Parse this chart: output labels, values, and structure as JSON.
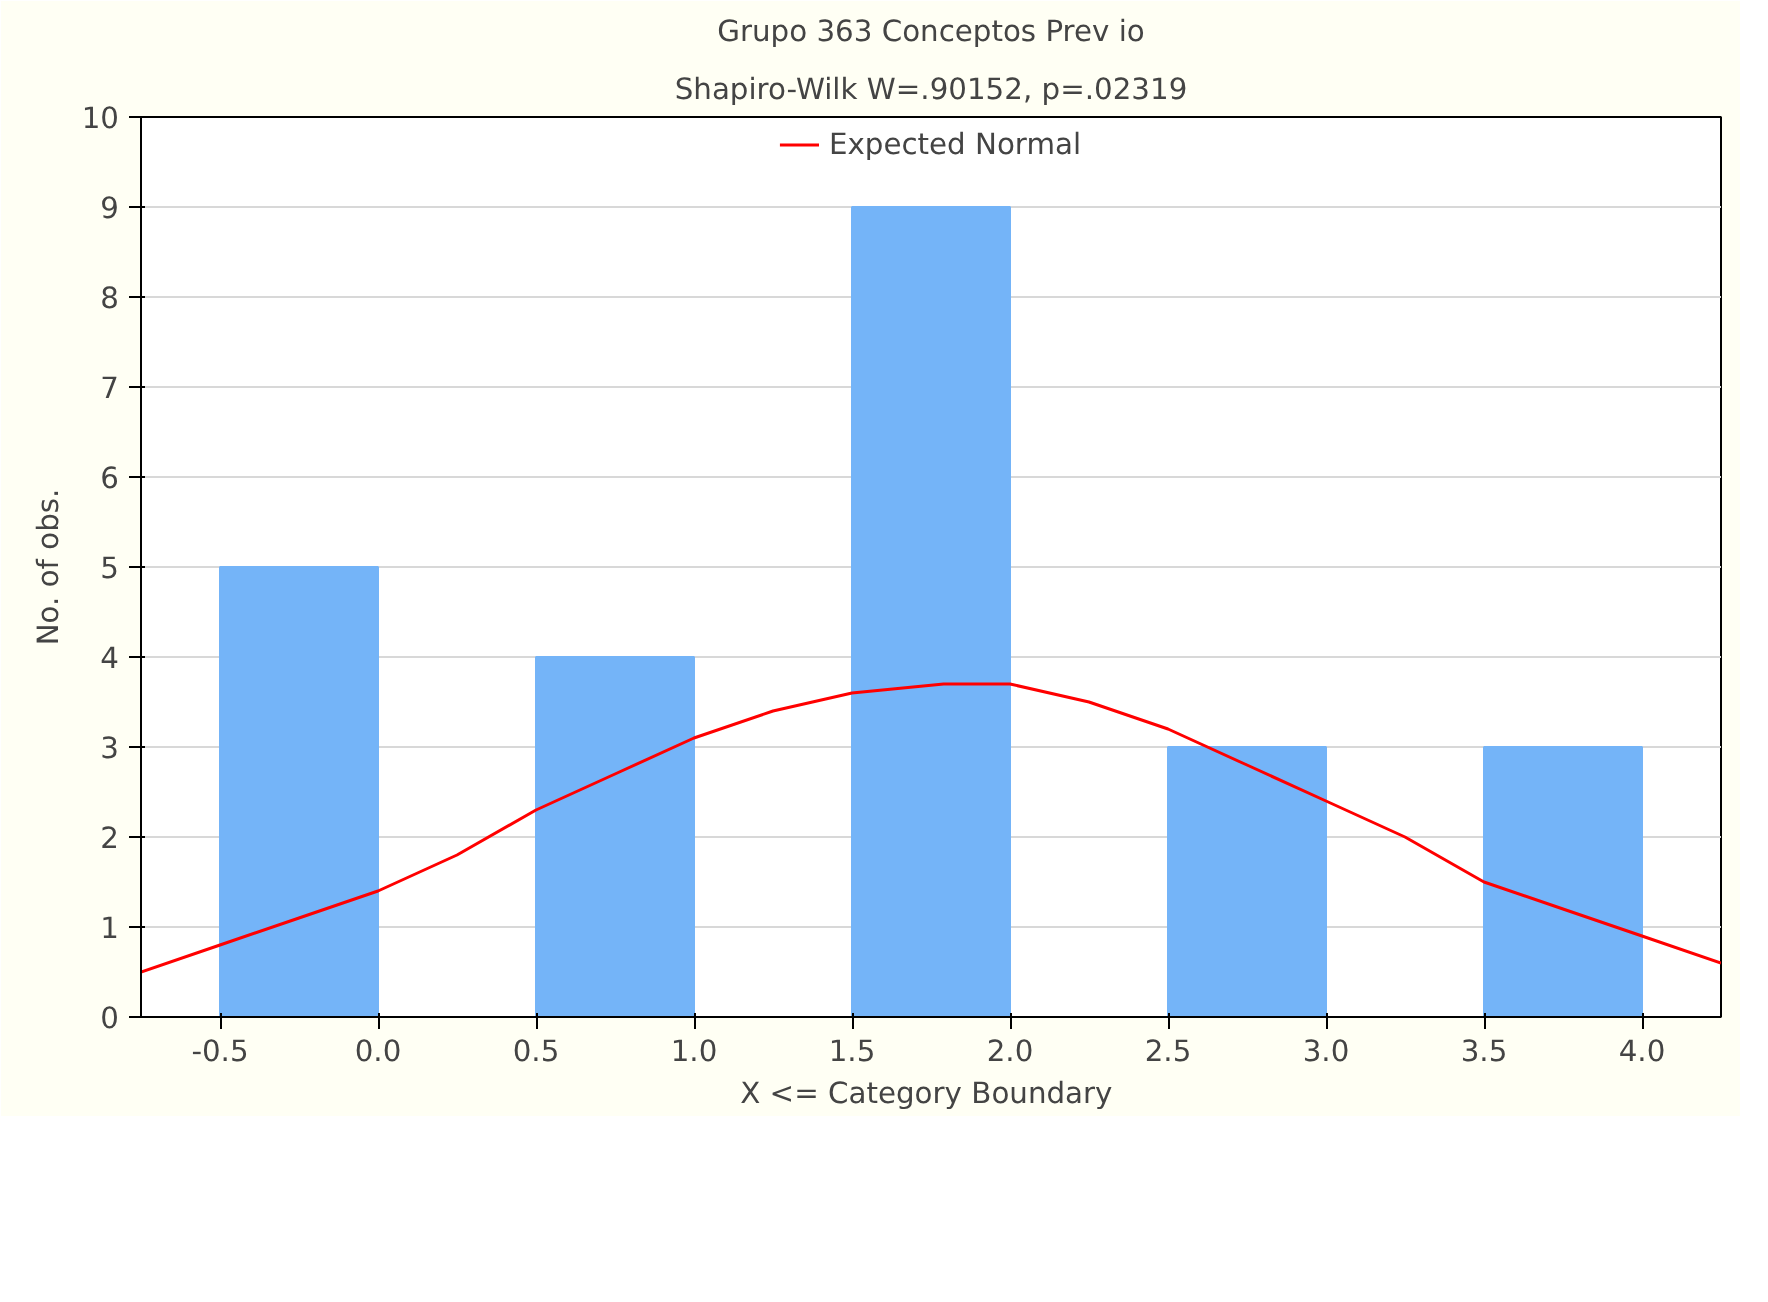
{
  "chart_data": {
    "type": "histogram",
    "title": "Grupo 363 Conceptos Prev io",
    "subtitle": "Shapiro-Wilk W=.90152, p=.02319",
    "xlabel": "X <= Category  Boundary",
    "ylabel": "No. of obs.",
    "bins": [
      -0.5,
      0.0,
      0.5,
      1.0,
      1.5,
      2.0,
      2.5,
      3.0,
      3.5,
      4.0
    ],
    "values": [
      5,
      0,
      4,
      0,
      9,
      0,
      3,
      0,
      3
    ],
    "color": "#74b4f8",
    "series": [
      {
        "type": "line",
        "name": "Expected Normal",
        "color": "#ff0000",
        "x": [
          -0.75,
          -0.5,
          -0.25,
          0,
          0.25,
          0.5,
          0.75,
          1.0,
          1.25,
          1.5,
          1.79,
          2.0,
          2.25,
          2.5,
          2.75,
          3.0,
          3.25,
          3.5,
          3.75,
          4.0,
          4.25
        ],
        "values": [
          0.5,
          0.8,
          1.1,
          1.4,
          1.8,
          2.3,
          2.7,
          3.1,
          3.4,
          3.6,
          3.7,
          3.7,
          3.5,
          3.2,
          2.8,
          2.4,
          2.0,
          1.5,
          1.2,
          0.9,
          0.6
        ]
      }
    ],
    "xlim": [
      -0.75,
      4.25
    ],
    "ylim": [
      0,
      10
    ],
    "xticks": [
      {
        "value": -0.5,
        "label": "-0.5"
      },
      {
        "value": 0,
        "label": "0.0"
      },
      {
        "value": 0.5,
        "label": "0.5"
      },
      {
        "value": 1,
        "label": "1.0"
      },
      {
        "value": 1.5,
        "label": "1.5"
      },
      {
        "value": 2,
        "label": "2.0"
      },
      {
        "value": 2.5,
        "label": "2.5"
      },
      {
        "value": 3,
        "label": "3.0"
      },
      {
        "value": 3.5,
        "label": "3.5"
      },
      {
        "value": 4,
        "label": "4.0"
      }
    ],
    "yticks": [
      0,
      1,
      2,
      3,
      4,
      5,
      6,
      7,
      8,
      9,
      10
    ],
    "grid": "y",
    "legend": "top"
  }
}
